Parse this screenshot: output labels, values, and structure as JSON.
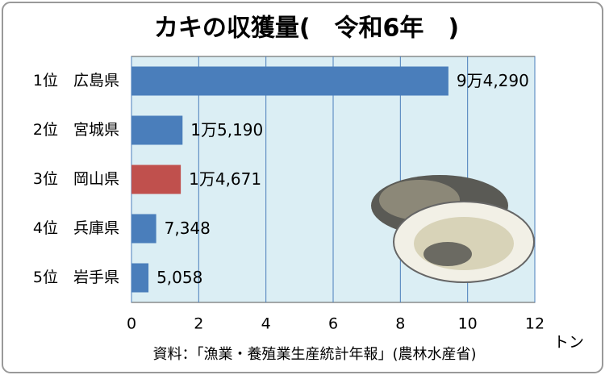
{
  "chart_data": {
    "type": "bar",
    "orientation": "horizontal",
    "title": "カキの収獲量(　令和6年　)",
    "categories": [
      "1位　広島県",
      "2位　宮城県",
      "3位　岡山県",
      "4位　兵庫県",
      "5位　岩手県"
    ],
    "values": [
      9.429,
      1.519,
      1.4671,
      0.7348,
      0.5058
    ],
    "value_labels": [
      "9万4,290",
      "1万5,190",
      "1万4,671",
      "7,348",
      "5,058"
    ],
    "colors": [
      "#4a7ebb",
      "#4a7ebb",
      "#c0504d",
      "#4a7ebb",
      "#4a7ebb"
    ],
    "xlim": [
      0,
      12
    ],
    "xticks": [
      0,
      2,
      4,
      6,
      8,
      10,
      12
    ],
    "grid": true,
    "x_label": "トン",
    "source": "資料：「漁業・養殖業生産統計年報」(農林水産省)"
  }
}
